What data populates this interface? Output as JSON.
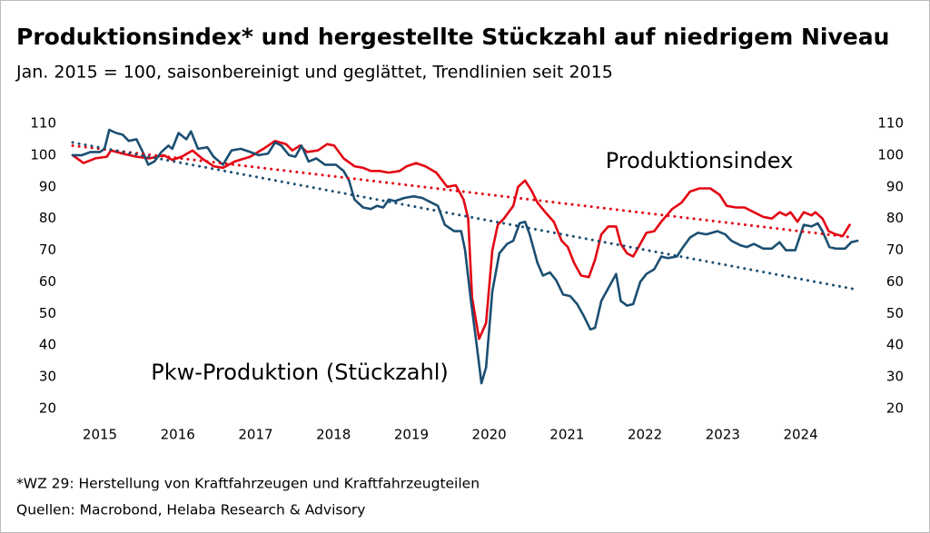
{
  "chart_data": {
    "type": "line",
    "title": "Produktionsindex* und hergestellte Stückzahl auf niedrigem Niveau",
    "subtitle": "Jan. 2015 = 100, saisonbereinigt und geglättet, Trendlinien seit 2015",
    "footnotes": [
      "*WZ 29: Herstellung von Kraftfahrzeugen und Kraftfahrzeugteilen",
      "Quellen: Macrobond, Helaba Research & Advisory"
    ],
    "xlim": [
      2015,
      2025.09
    ],
    "xticks": [
      2015,
      2016,
      2017,
      2018,
      2019,
      2020,
      2021,
      2022,
      2023,
      2024
    ],
    "ylim": [
      20,
      110
    ],
    "yticks": [
      20,
      30,
      40,
      50,
      60,
      70,
      80,
      90,
      100,
      110
    ],
    "y2lim": [
      20,
      110
    ],
    "y2ticks": [
      20,
      30,
      40,
      50,
      60,
      70,
      80,
      90,
      100,
      110
    ],
    "series": [
      {
        "name": "Produktionsindex",
        "color": "#e30613",
        "style": "solid",
        "x": [
          2015,
          2015.14,
          2015.29,
          2015.44,
          2015.49,
          2015.64,
          2015.82,
          2015.99,
          2016.17,
          2016.28,
          2016.4,
          2016.54,
          2016.66,
          2016.81,
          2016.93,
          2017.08,
          2017.28,
          2017.45,
          2017.6,
          2017.74,
          2017.82,
          2017.92,
          2018.01,
          2018.15,
          2018.27,
          2018.36,
          2018.48,
          2018.62,
          2018.73,
          2018.83,
          2018.94,
          2019.06,
          2019.2,
          2019.29,
          2019.41,
          2019.53,
          2019.67,
          2019.81,
          2019.92,
          2020.02,
          2020.08,
          2020.13,
          2020.22,
          2020.31,
          2020.39,
          2020.46,
          2020.54,
          2020.66,
          2020.72,
          2020.81,
          2020.89,
          2020.97,
          2021.07,
          2021.18,
          2021.28,
          2021.36,
          2021.44,
          2021.53,
          2021.63,
          2021.71,
          2021.79,
          2021.88,
          2021.98,
          2022.04,
          2022.12,
          2022.2,
          2022.29,
          2022.37,
          2022.47,
          2022.56,
          2022.7,
          2022.82,
          2022.93,
          2023.05,
          2023.19,
          2023.31,
          2023.4,
          2023.52,
          2023.63,
          2023.75,
          2023.87,
          2023.98,
          2024.08,
          2024.16,
          2024.22,
          2024.31,
          2024.39,
          2024.49,
          2024.54,
          2024.63,
          2024.71,
          2024.8,
          2024.89,
          2024.98
        ],
        "values": [
          100,
          97.5,
          99,
          99.5,
          101.5,
          100.5,
          99.5,
          99,
          100,
          98.5,
          99.5,
          101.5,
          99,
          96.5,
          96,
          98,
          99.5,
          102,
          104.5,
          103.5,
          101.5,
          103,
          101,
          101.5,
          103.5,
          103,
          99,
          96.5,
          96,
          95,
          95,
          94.5,
          95,
          96.5,
          97.5,
          96.5,
          94.5,
          90,
          90.5,
          86,
          80,
          55,
          42,
          47,
          70,
          78,
          80,
          84,
          90,
          92,
          89,
          85,
          82,
          79,
          73,
          71,
          66,
          62,
          61.5,
          67,
          75,
          77.5,
          77.5,
          72,
          69,
          68,
          72,
          75.5,
          76,
          79,
          83,
          85,
          88.5,
          89.5,
          89.5,
          87.5,
          84,
          83.5,
          83.5,
          82,
          80.5,
          80,
          82,
          81,
          82,
          79,
          82,
          81,
          82,
          80,
          76,
          75,
          74.5,
          78
        ]
      },
      {
        "name": "Pkw-Produktion (Stückzahl)",
        "color": "#1b4f72",
        "style": "solid",
        "x": [
          2015,
          2015.12,
          2015.23,
          2015.35,
          2015.41,
          2015.47,
          2015.56,
          2015.64,
          2015.72,
          2015.82,
          2015.9,
          2015.97,
          2016.05,
          2016.14,
          2016.23,
          2016.28,
          2016.36,
          2016.46,
          2016.52,
          2016.61,
          2016.73,
          2016.81,
          2016.93,
          2017.04,
          2017.16,
          2017.28,
          2017.39,
          2017.51,
          2017.6,
          2017.68,
          2017.78,
          2017.86,
          2017.94,
          2018.03,
          2018.13,
          2018.24,
          2018.38,
          2018.48,
          2018.55,
          2018.62,
          2018.73,
          2018.83,
          2018.91,
          2018.99,
          2019.06,
          2019.14,
          2019.26,
          2019.38,
          2019.49,
          2019.61,
          2019.69,
          2019.78,
          2019.9,
          2019.99,
          2020.04,
          2020.11,
          2020.19,
          2020.25,
          2020.31,
          2020.39,
          2020.48,
          2020.58,
          2020.66,
          2020.74,
          2020.81,
          2020.87,
          2020.97,
          2021.04,
          2021.13,
          2021.21,
          2021.3,
          2021.39,
          2021.48,
          2021.57,
          2021.65,
          2021.71,
          2021.79,
          2021.88,
          2021.98,
          2022.04,
          2022.12,
          2022.2,
          2022.29,
          2022.37,
          2022.47,
          2022.56,
          2022.64,
          2022.76,
          2022.84,
          2022.93,
          2023.03,
          2023.14,
          2023.28,
          2023.38,
          2023.46,
          2023.58,
          2023.66,
          2023.75,
          2023.87,
          2023.98,
          2024.08,
          2024.16,
          2024.28,
          2024.39,
          2024.49,
          2024.57,
          2024.63,
          2024.72,
          2024.8,
          2024.92,
          2025.0,
          2025.08
        ],
        "values": [
          100,
          100,
          101,
          101,
          102,
          108,
          107,
          106.5,
          104.5,
          105,
          101,
          97,
          98,
          101,
          103,
          102,
          107,
          105,
          107.5,
          102,
          102.5,
          99.5,
          97,
          101.5,
          102,
          101,
          100,
          100.5,
          104,
          103,
          100,
          99.5,
          103,
          98,
          99,
          97,
          97,
          95,
          92,
          86,
          83.5,
          83,
          84,
          83.5,
          86,
          85.5,
          86.5,
          87,
          86.5,
          85,
          84,
          78,
          76,
          76,
          70,
          55,
          40,
          28,
          33,
          57,
          69,
          72,
          73,
          78.5,
          79,
          75,
          66,
          62,
          63,
          60.5,
          56,
          55.5,
          53,
          49,
          45,
          45.5,
          54,
          58,
          62.5,
          54,
          52.5,
          53,
          60,
          62.5,
          64,
          68,
          67.5,
          68,
          71,
          74,
          75.5,
          75,
          76,
          75,
          73,
          71.5,
          71,
          72,
          70.5,
          70.5,
          72.5,
          70,
          70,
          78,
          77.5,
          78.5,
          76,
          71,
          70.5,
          70.5,
          72.5,
          73
        ]
      },
      {
        "color": "#e30613",
        "style": "dotted",
        "x": [
          2015,
          2025.03
        ],
        "values": [
          103,
          74
        ]
      },
      {
        "color": "#1b4f72",
        "style": "dotted",
        "x": [
          2015,
          2025.09
        ],
        "values": [
          104,
          57.5
        ]
      }
    ]
  }
}
